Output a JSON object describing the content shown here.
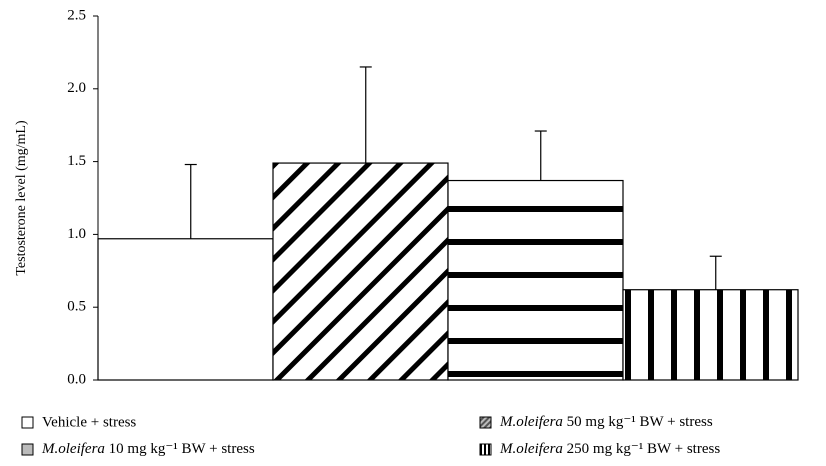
{
  "chart_data": {
    "type": "bar",
    "y_label": "Testosterone level (mg/mL)",
    "series": [
      {
        "name": "Vehicle + stress",
        "color": "#ffffff",
        "pattern": "none",
        "values": [
          0.97
        ],
        "errors": [
          0.51
        ]
      },
      {
        "name": "M.oleifera 50 mg kg⁻¹ BW + stress",
        "color": "#ffffff",
        "pattern": "diagonal",
        "values": [
          1.49
        ],
        "errors": [
          0.66
        ]
      },
      {
        "name": "M.oleifera 10 mg kg⁻¹ BW + stress",
        "color": "#ffffff",
        "pattern": "horizontal",
        "values": [
          1.37
        ],
        "errors": [
          0.34
        ]
      },
      {
        "name": "M.oleifera 250 mg kg⁻¹ BW + stress",
        "color": "#ffffff",
        "pattern": "vertical",
        "values": [
          0.62
        ],
        "errors": [
          0.23
        ]
      }
    ],
    "legend_order": [
      0,
      2,
      1,
      3
    ],
    "ylim": [
      0,
      2.5
    ],
    "yticks": [
      {
        "value": 0,
        "label": "0.0"
      },
      0.5,
      {
        "value": 1,
        "label": "1.0"
      },
      1.5,
      {
        "value": 2,
        "label": "2.0"
      },
      2.5
    ],
    "grid": false
  }
}
